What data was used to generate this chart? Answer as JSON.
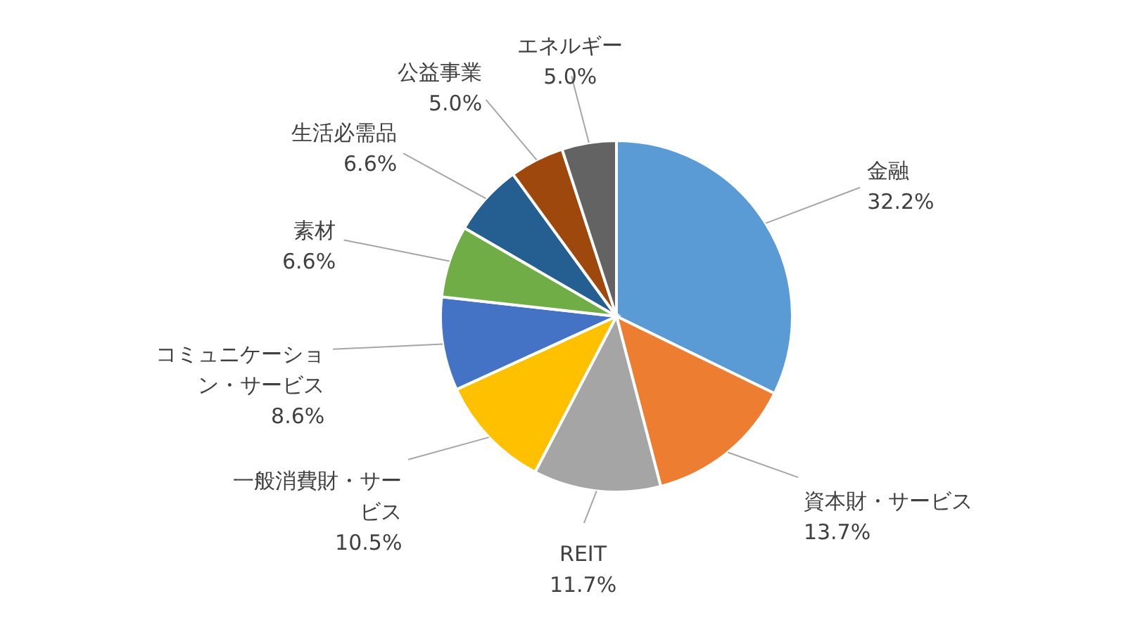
{
  "chart_data": {
    "type": "pie",
    "categories": [
      "金融",
      "資本財・サービス",
      "REIT",
      "一般消費財・サービス",
      "コミュニケーション・サービス",
      "素材",
      "生活必需品",
      "公益事業",
      "エネルギー"
    ],
    "values": [
      32.2,
      13.7,
      11.7,
      10.5,
      8.6,
      6.6,
      6.6,
      5.0,
      5.0
    ],
    "colors": [
      "#5b9bd5",
      "#ed7d31",
      "#a5a5a5",
      "#ffc000",
      "#4472c4",
      "#70ad47",
      "#255e91",
      "#9e480e",
      "#636363"
    ],
    "value_labels": [
      "32.2%",
      "13.7%",
      "11.7%",
      "10.5%",
      "8.6%",
      "6.6%",
      "6.6%",
      "5.0%",
      "5.0%"
    ]
  }
}
